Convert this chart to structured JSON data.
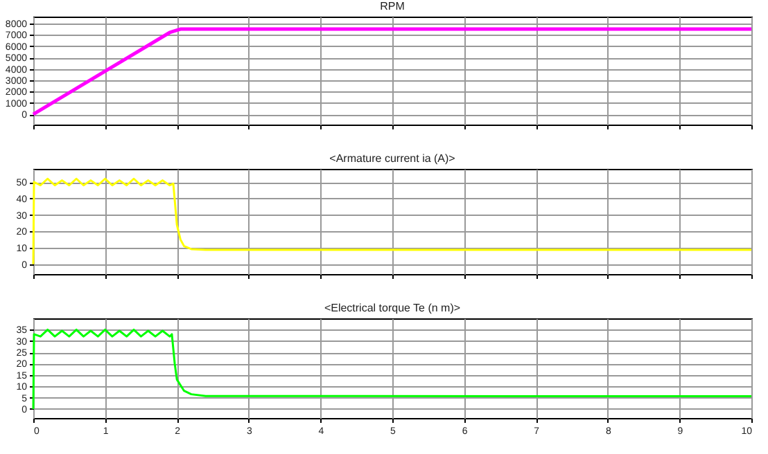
{
  "chart_data": [
    {
      "type": "line",
      "title": "RPM",
      "xlim": [
        0,
        10
      ],
      "xticks": [
        0,
        1,
        2,
        3,
        4,
        5,
        6,
        7,
        8,
        9,
        10
      ],
      "ylim": [
        -900,
        8600
      ],
      "yticks": [
        0,
        1000,
        2000,
        3000,
        4000,
        5000,
        6000,
        7000,
        8000
      ],
      "grid": true,
      "tick_labels": "y",
      "series": [
        {
          "color": "#ff00ff",
          "x": [
            0,
            1,
            1.9,
            2,
            2.05,
            2.2,
            10
          ],
          "values": [
            0,
            3800,
            7200,
            7400,
            7500,
            7500,
            7500
          ]
        }
      ]
    },
    {
      "type": "line",
      "title": "<Armature current ia (A)>",
      "xlim": [
        0,
        10
      ],
      "xticks": [
        0,
        1,
        2,
        3,
        4,
        5,
        6,
        7,
        8,
        9,
        10
      ],
      "ylim": [
        -6,
        58
      ],
      "yticks": [
        0,
        10,
        20,
        30,
        40,
        50
      ],
      "grid": true,
      "tick_labels": "y",
      "series": [
        {
          "color": "#ffff00",
          "x": [
            0,
            0.01,
            0.1,
            0.2,
            0.3,
            0.4,
            0.5,
            0.6,
            0.7,
            0.8,
            0.9,
            1,
            1.1,
            1.2,
            1.3,
            1.4,
            1.5,
            1.6,
            1.7,
            1.8,
            1.9,
            1.95,
            2,
            2.05,
            2.1,
            2.2,
            2.4,
            10
          ],
          "values": [
            0,
            50,
            48,
            52,
            48,
            51,
            48,
            52,
            48,
            51,
            48,
            52,
            48,
            51,
            48,
            52,
            48,
            51,
            48,
            51,
            48,
            49,
            24,
            15,
            11,
            9.2,
            8.7,
            8.7
          ]
        }
      ]
    },
    {
      "type": "line",
      "title": "<Electrical torque Te (n m)>",
      "xlim": [
        0,
        10
      ],
      "xticks": [
        0,
        1,
        2,
        3,
        4,
        5,
        6,
        7,
        8,
        9,
        10
      ],
      "ylim": [
        -4,
        40
      ],
      "yticks": [
        0,
        5,
        10,
        15,
        20,
        25,
        30,
        35
      ],
      "grid": true,
      "series": [
        {
          "color": "#00ff00",
          "x": [
            0,
            0.01,
            0.1,
            0.2,
            0.3,
            0.4,
            0.5,
            0.6,
            0.7,
            0.8,
            0.9,
            1,
            1.1,
            1.2,
            1.3,
            1.4,
            1.5,
            1.6,
            1.7,
            1.8,
            1.9,
            1.93,
            1.97,
            2,
            2.1,
            2.2,
            2.4,
            10
          ],
          "values": [
            0,
            33,
            32,
            35,
            32,
            34.5,
            32,
            35,
            32,
            34.5,
            32,
            35,
            32,
            34.5,
            32,
            35,
            32,
            34.5,
            32,
            34.5,
            32,
            33,
            20,
            13,
            8,
            6.5,
            5.7,
            5.6
          ]
        }
      ]
    }
  ]
}
